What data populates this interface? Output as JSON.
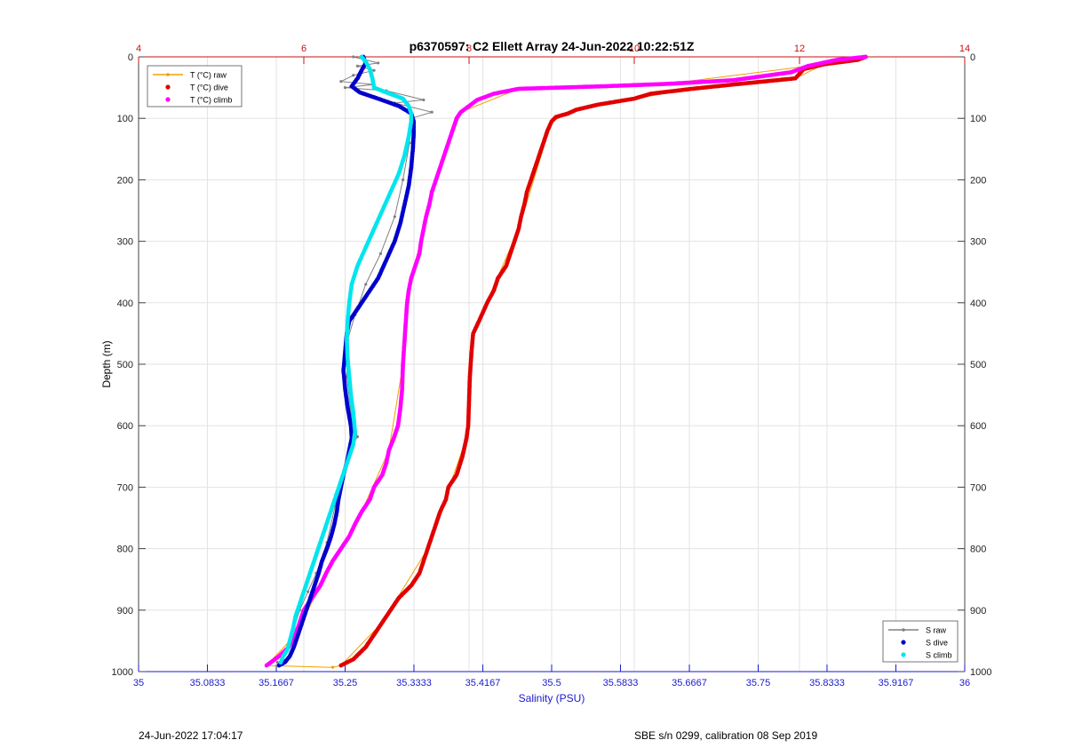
{
  "chart_data": {
    "type": "scatter",
    "title": "p6370597: C2 Ellett Array 24-Jun-2022 10:22:51Z",
    "xlabel": "Salinity (PSU)",
    "ylabel": "Depth (m)",
    "x_bottom": {
      "range": [
        35,
        36
      ],
      "ticks": [
        35,
        35.0833,
        35.1667,
        35.25,
        35.3333,
        35.4167,
        35.5,
        35.5833,
        35.6667,
        35.75,
        35.8333,
        35.9167,
        36
      ],
      "tick_labels": [
        "35",
        "35.0833",
        "35.1667",
        "35.25",
        "35.3333",
        "35.4167",
        "35.5",
        "35.5833",
        "35.6667",
        "35.75",
        "35.8333",
        "35.9167",
        "36"
      ],
      "color": "#1a1acc"
    },
    "x_top": {
      "range": [
        4,
        14
      ],
      "ticks": [
        4,
        6,
        8,
        10,
        12,
        14
      ],
      "tick_labels": [
        "4",
        "6",
        "8",
        "10",
        "12",
        "14"
      ],
      "color": "#cc1111"
    },
    "y": {
      "range": [
        0,
        1000
      ],
      "reversed": true,
      "ticks": [
        0,
        100,
        200,
        300,
        400,
        500,
        600,
        700,
        800,
        900,
        1000
      ],
      "tick_labels": [
        "0",
        "100",
        "200",
        "300",
        "400",
        "500",
        "600",
        "700",
        "800",
        "900",
        "1000"
      ]
    },
    "grid": true,
    "legends": [
      {
        "placement": "top-left",
        "entries": [
          {
            "label": "T (°C) raw",
            "style": "line-marker",
            "color": "#f0a000"
          },
          {
            "label": "T (°C) dive",
            "style": "dot",
            "color": "#e00000"
          },
          {
            "label": "T (°C) climb",
            "style": "dot",
            "color": "#ff00ff"
          }
        ]
      },
      {
        "placement": "bottom-right",
        "entries": [
          {
            "label": "S raw",
            "style": "line-marker",
            "color": "#808080"
          },
          {
            "label": "S dive",
            "style": "dot",
            "color": "#0000cc"
          },
          {
            "label": "S climb",
            "style": "dot",
            "color": "#00e5ee"
          }
        ]
      }
    ],
    "series": [
      {
        "name": "T (°C) dive",
        "axis": "top",
        "color": "#e00000",
        "points": [
          [
            12.8,
            0
          ],
          [
            12.7,
            5
          ],
          [
            12.3,
            12
          ],
          [
            12.05,
            20
          ],
          [
            11.95,
            35
          ],
          [
            11.2,
            45
          ],
          [
            10.7,
            52
          ],
          [
            10.2,
            60
          ],
          [
            10.0,
            68
          ],
          [
            9.55,
            78
          ],
          [
            9.3,
            86
          ],
          [
            9.2,
            92
          ],
          [
            9.05,
            98
          ],
          [
            9.0,
            105
          ],
          [
            8.95,
            120
          ],
          [
            8.9,
            140
          ],
          [
            8.85,
            160
          ],
          [
            8.8,
            180
          ],
          [
            8.75,
            200
          ],
          [
            8.7,
            220
          ],
          [
            8.67,
            240
          ],
          [
            8.63,
            260
          ],
          [
            8.6,
            280
          ],
          [
            8.55,
            300
          ],
          [
            8.5,
            320
          ],
          [
            8.45,
            340
          ],
          [
            8.35,
            360
          ],
          [
            8.3,
            380
          ],
          [
            8.22,
            400
          ],
          [
            8.12,
            430
          ],
          [
            8.05,
            450
          ],
          [
            8.03,
            480
          ],
          [
            8.01,
            520
          ],
          [
            8.0,
            560
          ],
          [
            7.99,
            600
          ],
          [
            7.97,
            620
          ],
          [
            7.92,
            650
          ],
          [
            7.85,
            680
          ],
          [
            7.75,
            700
          ],
          [
            7.72,
            720
          ],
          [
            7.65,
            740
          ],
          [
            7.6,
            760
          ],
          [
            7.5,
            800
          ],
          [
            7.4,
            840
          ],
          [
            7.3,
            860
          ],
          [
            7.15,
            880
          ],
          [
            6.95,
            920
          ],
          [
            6.75,
            960
          ],
          [
            6.6,
            980
          ],
          [
            6.45,
            990
          ]
        ]
      },
      {
        "name": "T (°C) climb",
        "axis": "top",
        "color": "#ff00ff",
        "points": [
          [
            12.8,
            0
          ],
          [
            12.45,
            5
          ],
          [
            12.1,
            15
          ],
          [
            11.9,
            25
          ],
          [
            11.2,
            38
          ],
          [
            10.4,
            44
          ],
          [
            9.6,
            48
          ],
          [
            8.6,
            52
          ],
          [
            8.3,
            60
          ],
          [
            8.1,
            70
          ],
          [
            8.0,
            80
          ],
          [
            7.9,
            90
          ],
          [
            7.85,
            100
          ],
          [
            7.8,
            120
          ],
          [
            7.75,
            140
          ],
          [
            7.7,
            160
          ],
          [
            7.65,
            180
          ],
          [
            7.6,
            200
          ],
          [
            7.55,
            220
          ],
          [
            7.52,
            240
          ],
          [
            7.48,
            260
          ],
          [
            7.45,
            280
          ],
          [
            7.42,
            300
          ],
          [
            7.4,
            320
          ],
          [
            7.35,
            340
          ],
          [
            7.3,
            360
          ],
          [
            7.27,
            380
          ],
          [
            7.25,
            400
          ],
          [
            7.24,
            420
          ],
          [
            7.23,
            440
          ],
          [
            7.22,
            460
          ],
          [
            7.21,
            480
          ],
          [
            7.2,
            500
          ],
          [
            7.19,
            540
          ],
          [
            7.17,
            570
          ],
          [
            7.14,
            600
          ],
          [
            7.09,
            620
          ],
          [
            7.03,
            640
          ],
          [
            7.0,
            660
          ],
          [
            6.95,
            680
          ],
          [
            6.85,
            700
          ],
          [
            6.8,
            720
          ],
          [
            6.7,
            740
          ],
          [
            6.62,
            760
          ],
          [
            6.55,
            780
          ],
          [
            6.45,
            800
          ],
          [
            6.35,
            820
          ],
          [
            6.27,
            840
          ],
          [
            6.2,
            860
          ],
          [
            6.1,
            880
          ],
          [
            6.0,
            900
          ],
          [
            5.95,
            920
          ],
          [
            5.9,
            940
          ],
          [
            5.82,
            960
          ],
          [
            5.7,
            975
          ],
          [
            5.55,
            990
          ]
        ]
      },
      {
        "name": "T (°C) raw",
        "axis": "top",
        "color": "#f0a000",
        "points": [
          [
            12.8,
            0
          ],
          [
            12.3,
            12
          ],
          [
            11.95,
            35
          ],
          [
            10.7,
            52
          ],
          [
            10.0,
            68
          ],
          [
            9.3,
            86
          ],
          [
            9.0,
            105
          ],
          [
            8.6,
            280
          ],
          [
            8.05,
            450
          ],
          [
            7.97,
            620
          ],
          [
            7.5,
            800
          ],
          [
            6.95,
            920
          ],
          [
            6.45,
            990
          ],
          [
            6.35,
            993
          ],
          [
            5.55,
            990
          ],
          [
            5.9,
            940
          ],
          [
            6.2,
            860
          ],
          [
            6.7,
            740
          ],
          [
            7.03,
            640
          ],
          [
            7.2,
            500
          ],
          [
            7.3,
            360
          ],
          [
            7.6,
            200
          ],
          [
            7.9,
            90
          ],
          [
            8.6,
            52
          ],
          [
            10.4,
            44
          ],
          [
            12.1,
            15
          ],
          [
            12.8,
            0
          ]
        ]
      },
      {
        "name": "S dive",
        "axis": "bottom",
        "color": "#0000cc",
        "points": [
          [
            35.272,
            0
          ],
          [
            35.275,
            10
          ],
          [
            35.27,
            22
          ],
          [
            35.265,
            35
          ],
          [
            35.258,
            48
          ],
          [
            35.268,
            58
          ],
          [
            35.29,
            68
          ],
          [
            35.315,
            80
          ],
          [
            35.33,
            92
          ],
          [
            35.333,
            105
          ],
          [
            35.333,
            125
          ],
          [
            35.332,
            150
          ],
          [
            35.33,
            180
          ],
          [
            35.327,
            210
          ],
          [
            35.322,
            240
          ],
          [
            35.317,
            270
          ],
          [
            35.31,
            300
          ],
          [
            35.3,
            330
          ],
          [
            35.29,
            360
          ],
          [
            35.275,
            390
          ],
          [
            35.265,
            410
          ],
          [
            35.255,
            430
          ],
          [
            35.252,
            450
          ],
          [
            35.25,
            480
          ],
          [
            35.248,
            510
          ],
          [
            35.25,
            540
          ],
          [
            35.253,
            570
          ],
          [
            35.257,
            600
          ],
          [
            35.258,
            620
          ],
          [
            35.255,
            640
          ],
          [
            35.252,
            660
          ],
          [
            35.248,
            680
          ],
          [
            35.245,
            700
          ],
          [
            35.242,
            720
          ],
          [
            35.24,
            740
          ],
          [
            35.237,
            760
          ],
          [
            35.233,
            780
          ],
          [
            35.228,
            800
          ],
          [
            35.222,
            820
          ],
          [
            35.218,
            840
          ],
          [
            35.213,
            860
          ],
          [
            35.208,
            880
          ],
          [
            35.203,
            900
          ],
          [
            35.198,
            920
          ],
          [
            35.193,
            940
          ],
          [
            35.188,
            960
          ],
          [
            35.183,
            975
          ],
          [
            35.177,
            985
          ],
          [
            35.17,
            990
          ]
        ]
      },
      {
        "name": "S climb",
        "axis": "bottom",
        "color": "#00e5ee",
        "points": [
          [
            35.27,
            0
          ],
          [
            35.275,
            8
          ],
          [
            35.28,
            20
          ],
          [
            35.283,
            35
          ],
          [
            35.285,
            50
          ],
          [
            35.3,
            58
          ],
          [
            35.32,
            68
          ],
          [
            35.327,
            80
          ],
          [
            35.33,
            92
          ],
          [
            35.33,
            105
          ],
          [
            35.327,
            130
          ],
          [
            35.322,
            160
          ],
          [
            35.315,
            190
          ],
          [
            35.305,
            220
          ],
          [
            35.295,
            250
          ],
          [
            35.285,
            280
          ],
          [
            35.275,
            310
          ],
          [
            35.265,
            340
          ],
          [
            35.258,
            370
          ],
          [
            35.255,
            400
          ],
          [
            35.253,
            430
          ],
          [
            35.252,
            460
          ],
          [
            35.253,
            490
          ],
          [
            35.255,
            520
          ],
          [
            35.257,
            550
          ],
          [
            35.26,
            580
          ],
          [
            35.262,
            610
          ],
          [
            35.26,
            630
          ],
          [
            35.255,
            650
          ],
          [
            35.25,
            670
          ],
          [
            35.245,
            690
          ],
          [
            35.24,
            710
          ],
          [
            35.235,
            730
          ],
          [
            35.23,
            750
          ],
          [
            35.225,
            770
          ],
          [
            35.22,
            790
          ],
          [
            35.215,
            810
          ],
          [
            35.21,
            830
          ],
          [
            35.205,
            850
          ],
          [
            35.2,
            870
          ],
          [
            35.195,
            890
          ],
          [
            35.19,
            910
          ],
          [
            35.187,
            930
          ],
          [
            35.183,
            950
          ],
          [
            35.18,
            965
          ],
          [
            35.175,
            975
          ],
          [
            35.172,
            985
          ]
        ]
      },
      {
        "name": "S raw",
        "axis": "bottom",
        "color": "#808080",
        "points": [
          [
            35.26,
            0
          ],
          [
            35.29,
            10
          ],
          [
            35.265,
            15
          ],
          [
            35.285,
            22
          ],
          [
            35.26,
            30
          ],
          [
            35.245,
            40
          ],
          [
            35.285,
            45
          ],
          [
            35.25,
            50
          ],
          [
            35.3,
            55
          ],
          [
            35.345,
            70
          ],
          [
            35.31,
            75
          ],
          [
            35.355,
            90
          ],
          [
            35.33,
            100
          ],
          [
            35.328,
            140
          ],
          [
            35.32,
            200
          ],
          [
            35.31,
            260
          ],
          [
            35.293,
            320
          ],
          [
            35.275,
            370
          ],
          [
            35.262,
            420
          ],
          [
            35.253,
            460
          ],
          [
            35.252,
            520
          ],
          [
            35.257,
            580
          ],
          [
            35.265,
            618
          ],
          [
            35.254,
            640
          ],
          [
            35.245,
            690
          ],
          [
            35.238,
            730
          ],
          [
            35.228,
            790
          ],
          [
            35.215,
            840
          ],
          [
            35.205,
            870
          ],
          [
            35.195,
            900
          ],
          [
            35.188,
            930
          ],
          [
            35.182,
            960
          ],
          [
            35.175,
            980
          ],
          [
            35.172,
            988
          ],
          [
            35.168,
            985
          ]
        ]
      }
    ]
  },
  "footer": {
    "left": "24-Jun-2022 17:04:17",
    "right": "SBE s/n 0299, calibration 08 Sep 2019"
  }
}
